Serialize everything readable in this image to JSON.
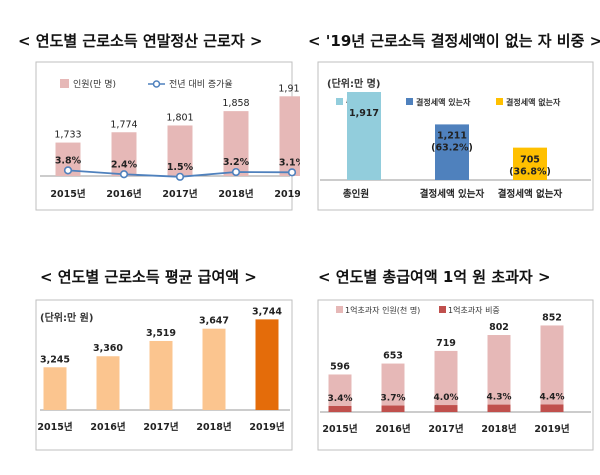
{
  "chart_data": [
    {
      "type": "bar",
      "title": "< 연도별 근로소득 연말정산 근로자 >",
      "categories": [
        "2015년",
        "2016년",
        "2017년",
        "2018년",
        "2019년"
      ],
      "series": [
        {
          "name": "인원(만 명)",
          "values": [
            1733,
            1774,
            1801,
            1858,
            1917
          ],
          "labels": [
            "1,733",
            "1,774",
            "1,801",
            "1,858",
            "1,917"
          ],
          "color": "#e6b8b7"
        },
        {
          "name": "전년 대비 증가율",
          "type": "line",
          "values": [
            3.8,
            2.4,
            1.5,
            3.2,
            3.1
          ],
          "labels": [
            "3.8%",
            "2.4%",
            "1.5%",
            "3.2%",
            "3.1%"
          ],
          "color": "#4f81bd"
        }
      ]
    },
    {
      "type": "bar",
      "title": "< '19년 근로소득 결정세액이 없는 자 비중 >",
      "unit_label": "(단위:만 명)",
      "categories": [
        "총인원",
        "결정세액 있는자",
        "결정세액 없는자"
      ],
      "values": [
        1917,
        1211,
        705
      ],
      "value_labels": [
        "1,917",
        "1,211",
        "705"
      ],
      "share_labels": [
        "",
        "(63.2%)",
        "(36.8%)"
      ],
      "colors": [
        "#92cddc",
        "#4f81bd",
        "#ffc000"
      ],
      "legend": [
        "총인원",
        "결정세액 있는자",
        "결정세액 없는자"
      ]
    },
    {
      "type": "bar",
      "title": "< 연도별 근로소득 평균 급여액 >",
      "unit_label": "(단위:만 원)",
      "categories": [
        "2015년",
        "2016년",
        "2017년",
        "2018년",
        "2019년"
      ],
      "values": [
        3245,
        3360,
        3519,
        3647,
        3744
      ],
      "value_labels": [
        "3,245",
        "3,360",
        "3,519",
        "3,647",
        "3,744"
      ],
      "colors": [
        "#fbc58f",
        "#fbc58f",
        "#fbc58f",
        "#fbc58f",
        "#e46c0a"
      ]
    },
    {
      "type": "bar",
      "title": "< 연도별 총급여액 1억 원 초과자 >",
      "categories": [
        "2015년",
        "2016년",
        "2017년",
        "2018년",
        "2019년"
      ],
      "series": [
        {
          "name": "1억초과자 인원(천 명)",
          "values": [
            596,
            653,
            719,
            802,
            852
          ],
          "labels": [
            "596",
            "653",
            "719",
            "802",
            "852"
          ],
          "color": "#e6b8b7"
        },
        {
          "name": "1억초과자 비중",
          "values": [
            3.4,
            3.7,
            4.0,
            4.3,
            4.4
          ],
          "labels": [
            "3.4%",
            "3.7%",
            "4.0%",
            "4.3%",
            "4.4%"
          ],
          "color": "#c0504d"
        }
      ]
    }
  ]
}
